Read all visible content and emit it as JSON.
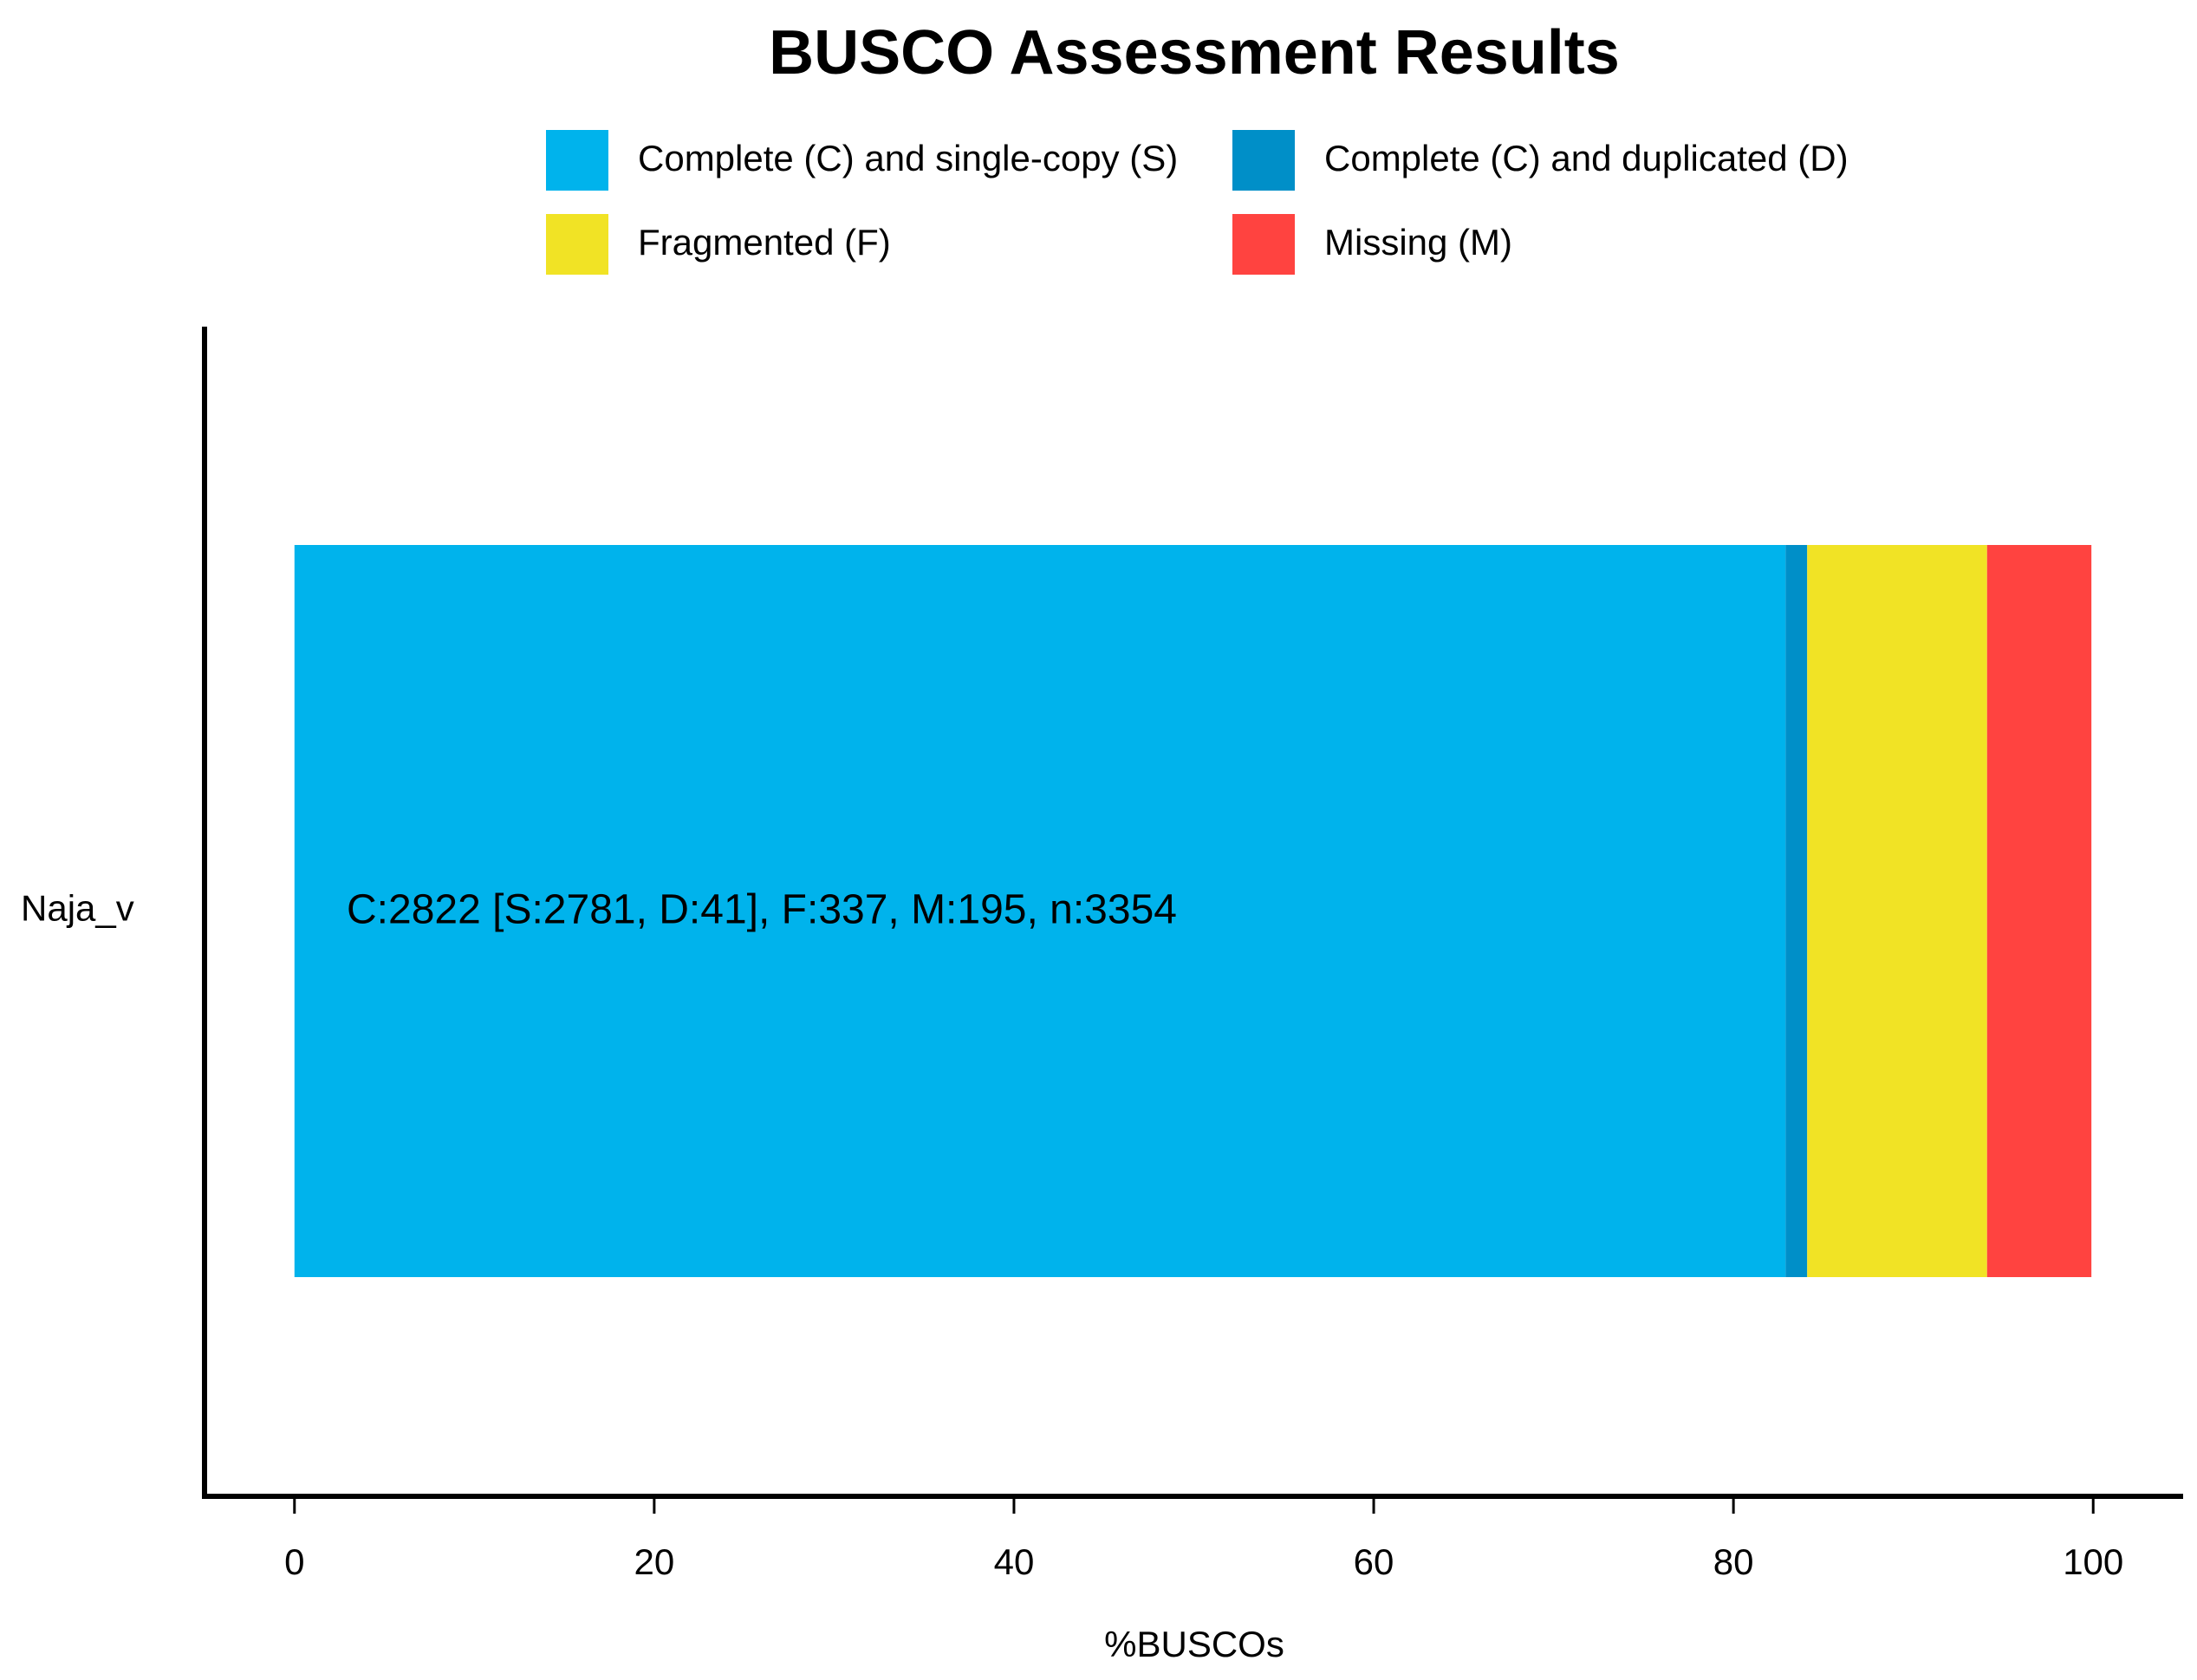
{
  "chart_data": {
    "type": "bar",
    "orientation": "horizontal",
    "stacked": true,
    "title": "BUSCO Assessment Results",
    "categories": [
      "Naja_v"
    ],
    "series": [
      {
        "name": "Complete (C) and single-copy (S)",
        "color": "#00b3ec",
        "values": [
          82.9
        ]
      },
      {
        "name": "Complete (C) and duplicated (D)",
        "color": "#008fc8",
        "values": [
          1.2
        ]
      },
      {
        "name": "Fragmented (F)",
        "color": "#f1e325",
        "values": [
          10.0
        ]
      },
      {
        "name": "Missing (M)",
        "color": "#ff4340",
        "values": [
          5.8
        ]
      }
    ],
    "annotation": "C:2822 [S:2781, D:41], F:337, M:195, n:3354",
    "xlabel": "%BUSCOs",
    "xlim": [
      -5,
      105
    ],
    "xticks": [
      0,
      20,
      40,
      60,
      80,
      100
    ],
    "legend": "top",
    "grid": false
  }
}
